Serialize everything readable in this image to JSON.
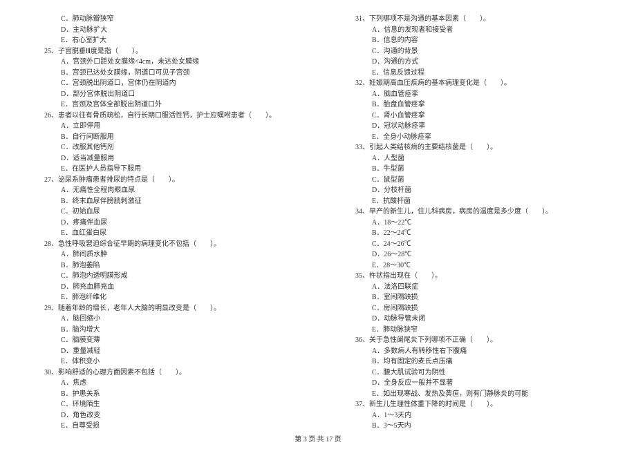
{
  "footer": "第 3 页 共 17 页",
  "leftColumn": [
    {
      "cls": "option",
      "text": "C．肺动脉瓣狭窄"
    },
    {
      "cls": "option",
      "text": "D．主动脉扩大"
    },
    {
      "cls": "option",
      "text": "E．右心室扩大"
    },
    {
      "cls": "question",
      "text": "25、子宫脱垂Ⅲ度是指（　　）。"
    },
    {
      "cls": "option",
      "text": "A．宫颈外口距处女膜缘<4cm，未达处女膜缘"
    },
    {
      "cls": "option",
      "text": "B．宫颈已达处女膜缘，阴道口可见子宫颈"
    },
    {
      "cls": "option",
      "text": "C．宫颈脱出阴道口，宫体仍在阴道内"
    },
    {
      "cls": "option",
      "text": "D．部分宫体脱出阴道口"
    },
    {
      "cls": "option",
      "text": "E．宫颈及宫体全部脱出阴道口外"
    },
    {
      "cls": "question",
      "text": "26、患者以往有骨质疏松，自行长期口服活性钙，护士应嘱咐患者（　　）。"
    },
    {
      "cls": "option",
      "text": "A．立即停用"
    },
    {
      "cls": "option",
      "text": "B．自行间断服用"
    },
    {
      "cls": "option",
      "text": "C．改服其他钙剂"
    },
    {
      "cls": "option",
      "text": "D．适当减量服用"
    },
    {
      "cls": "option",
      "text": "E．在医护人员指导下服用"
    },
    {
      "cls": "question",
      "text": "27、泌尿系肿瘤患者排尿的特点是（　　）。"
    },
    {
      "cls": "option",
      "text": "A．无痛性全程肉眼血尿"
    },
    {
      "cls": "option",
      "text": "B．终末血尿伴膀胱刺激征"
    },
    {
      "cls": "option",
      "text": "C．初始血尿"
    },
    {
      "cls": "option",
      "text": "D．疼痛伴血尿"
    },
    {
      "cls": "option",
      "text": "E．血红蛋白尿"
    },
    {
      "cls": "question",
      "text": "28、急性呼吸窘迫综合征早期的病理变化不包括（　　）。"
    },
    {
      "cls": "option",
      "text": "A．肺间质水肿"
    },
    {
      "cls": "option",
      "text": "B．肺泡萎陷"
    },
    {
      "cls": "option",
      "text": "C．肺泡内透明膜形成"
    },
    {
      "cls": "option",
      "text": "D．肺充血肺充血"
    },
    {
      "cls": "option",
      "text": "E．肺泡纤维化"
    },
    {
      "cls": "question",
      "text": "29、随着年龄的增长，老年人大脑的明显改变是（　　）。"
    },
    {
      "cls": "option",
      "text": "A．脑回缩小"
    },
    {
      "cls": "option",
      "text": "B．脑沟增大"
    },
    {
      "cls": "option",
      "text": "C．脑膜变薄"
    },
    {
      "cls": "option",
      "text": "D．重量减轻"
    },
    {
      "cls": "option",
      "text": "E．体积变小"
    },
    {
      "cls": "question",
      "text": "30、影响舒适的心理方面因素不包括（　　）。"
    },
    {
      "cls": "option",
      "text": "A．焦虑"
    },
    {
      "cls": "option",
      "text": "B．护患关系"
    },
    {
      "cls": "option",
      "text": "C．环境陌生"
    },
    {
      "cls": "option",
      "text": "D．角色改变"
    },
    {
      "cls": "option",
      "text": "E．自尊受损"
    }
  ],
  "rightColumn": [
    {
      "cls": "question",
      "text": "31、下列哪项不是沟通的基本因素（　　）。"
    },
    {
      "cls": "option",
      "text": "A．信息的发现者和接受者"
    },
    {
      "cls": "option",
      "text": "B．信息的内容"
    },
    {
      "cls": "option",
      "text": "C．沟通的背景"
    },
    {
      "cls": "option",
      "text": "D．沟通的方式"
    },
    {
      "cls": "option",
      "text": "E．信息反馈过程"
    },
    {
      "cls": "question",
      "text": "32、妊娠期高血压疾病的基本病理变化是（　　）。"
    },
    {
      "cls": "option",
      "text": "A．脑血管痉挛"
    },
    {
      "cls": "option",
      "text": "B．胎盘血管痉挛"
    },
    {
      "cls": "option",
      "text": "C．肾小血管痉挛"
    },
    {
      "cls": "option",
      "text": "D．冠状动脉痉挛"
    },
    {
      "cls": "option",
      "text": "E．全身小动脉痉挛"
    },
    {
      "cls": "question",
      "text": "33、引起人类结核病的主要结核菌是（　　）。"
    },
    {
      "cls": "option",
      "text": "A．人型菌"
    },
    {
      "cls": "option",
      "text": "B．牛型菌"
    },
    {
      "cls": "option",
      "text": "C．鼠型菌"
    },
    {
      "cls": "option",
      "text": "D．分枝杆菌"
    },
    {
      "cls": "option",
      "text": "E．抗酸杆菌"
    },
    {
      "cls": "question",
      "text": "34、早产的新生儿，住儿科病房，病房的温度是多少度（　　）。"
    },
    {
      "cls": "option",
      "text": "A．18～22℃"
    },
    {
      "cls": "option",
      "text": "B．22～24℃"
    },
    {
      "cls": "option",
      "text": "C．24～26℃"
    },
    {
      "cls": "option",
      "text": "D．26～28℃"
    },
    {
      "cls": "option",
      "text": "E．28～30℃"
    },
    {
      "cls": "question",
      "text": "35、杵状指出现在（　　）。"
    },
    {
      "cls": "option",
      "text": "A．法洛四联症"
    },
    {
      "cls": "option",
      "text": "B．室间隔缺损"
    },
    {
      "cls": "option",
      "text": "C．房间隔缺损"
    },
    {
      "cls": "option",
      "text": "D．动脉导管未闭"
    },
    {
      "cls": "option",
      "text": "E．肺动脉狭窄"
    },
    {
      "cls": "question",
      "text": "36、关于急性阑尾炎下列哪项不正确（　　）。"
    },
    {
      "cls": "option",
      "text": "A．多数病人有转移性右下腹痛"
    },
    {
      "cls": "option",
      "text": "B．均有固定的麦氏点压痛"
    },
    {
      "cls": "option",
      "text": "C．腰大肌试验可为阴性"
    },
    {
      "cls": "option",
      "text": "D．全身反应一般并不显著"
    },
    {
      "cls": "option",
      "text": "E．如出现寒战、发热及黄疸，则有门静脉炎的可能"
    },
    {
      "cls": "question",
      "text": "37、新生儿生理性体重下降的时间是（　　）。"
    },
    {
      "cls": "option",
      "text": "A．1～3天内"
    },
    {
      "cls": "option",
      "text": "B．3～5天内"
    }
  ]
}
